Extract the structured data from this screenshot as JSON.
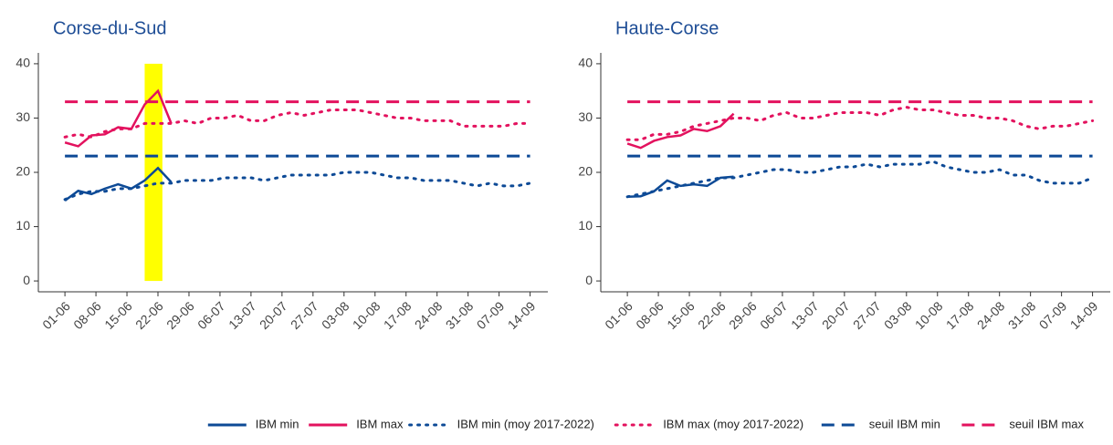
{
  "chart_data": [
    {
      "type": "line",
      "title": "Corse-du-Sud",
      "x": [
        "01-06",
        "04-06",
        "07-06",
        "10-06",
        "13-06",
        "16-06",
        "19-06",
        "22-06",
        "25-06",
        "28-06",
        "01-07",
        "04-07",
        "07-07",
        "10-07",
        "13-07",
        "16-07",
        "19-07",
        "22-07",
        "25-07",
        "28-07",
        "31-07",
        "03-08",
        "06-08",
        "09-08",
        "12-08",
        "15-08",
        "18-08",
        "21-08",
        "24-08",
        "27-08",
        "30-08",
        "02-09",
        "05-09",
        "08-09",
        "11-09",
        "14-09"
      ],
      "xlim": [
        "26-05",
        "18-09"
      ],
      "xticks": [
        "01-06",
        "08-06",
        "15-06",
        "22-06",
        "29-06",
        "06-07",
        "13-07",
        "20-07",
        "27-07",
        "03-08",
        "10-08",
        "17-08",
        "24-08",
        "31-08",
        "07-09",
        "14-09"
      ],
      "ylim": [
        -2,
        42
      ],
      "yticks": [
        0,
        10,
        20,
        30,
        40
      ],
      "highlight": {
        "x": [
          "19-06",
          "23-06"
        ],
        "y": [
          0,
          40
        ],
        "color": "#ffff00"
      },
      "series": [
        {
          "name": "IBM min",
          "color": "#0d4a96",
          "dash": "solid",
          "values": [
            14.8,
            16.6,
            16,
            17,
            17.8,
            17,
            18.5,
            20.8,
            18.2,
            null,
            null,
            null,
            null,
            null,
            null,
            null,
            null,
            null,
            null,
            null,
            null,
            null,
            null,
            null,
            null,
            null,
            null,
            null,
            null,
            null,
            null,
            null,
            null,
            null,
            null,
            null
          ]
        },
        {
          "name": "IBM max",
          "color": "#e3125e",
          "dash": "solid",
          "values": [
            25.5,
            24.8,
            26.8,
            27,
            28.3,
            28,
            32.5,
            35,
            29,
            null,
            null,
            null,
            null,
            null,
            null,
            null,
            null,
            null,
            null,
            null,
            null,
            null,
            null,
            null,
            null,
            null,
            null,
            null,
            null,
            null,
            null,
            null,
            null,
            null,
            null,
            null
          ]
        },
        {
          "name": "IBM min (moy 2017-2022)",
          "color": "#0d4a96",
          "dash": "dotted",
          "values": [
            15,
            16,
            16.5,
            16.5,
            17,
            17,
            17.5,
            18,
            18,
            18.5,
            18.5,
            18.5,
            19,
            19,
            19,
            18.5,
            19,
            19.5,
            19.5,
            19.5,
            19.5,
            20,
            20,
            20,
            19.5,
            19,
            19,
            18.5,
            18.5,
            18.5,
            18,
            17.5,
            18,
            17.5,
            17.5,
            18
          ]
        },
        {
          "name": "IBM max (moy 2017-2022)",
          "color": "#e3125e",
          "dash": "dotted",
          "values": [
            26.5,
            27,
            26.5,
            27.5,
            28,
            28,
            29,
            29,
            29,
            29.5,
            29,
            30,
            30,
            30.5,
            29.5,
            29.5,
            30.5,
            31,
            30.5,
            31,
            31.5,
            31.5,
            31.5,
            31,
            30.5,
            30,
            30,
            29.5,
            29.5,
            29.5,
            28.5,
            28.5,
            28.5,
            28.5,
            29,
            29
          ]
        },
        {
          "name": "seuil IBM min",
          "color": "#0d4a96",
          "dash": "dashed",
          "level": 23
        },
        {
          "name": "seuil IBM max",
          "color": "#e3125e",
          "dash": "dashed",
          "level": 33
        }
      ]
    },
    {
      "type": "line",
      "title": "Haute-Corse",
      "x": [
        "01-06",
        "04-06",
        "07-06",
        "10-06",
        "13-06",
        "16-06",
        "19-06",
        "22-06",
        "25-06",
        "28-06",
        "01-07",
        "04-07",
        "07-07",
        "10-07",
        "13-07",
        "16-07",
        "19-07",
        "22-07",
        "25-07",
        "28-07",
        "31-07",
        "03-08",
        "06-08",
        "09-08",
        "12-08",
        "15-08",
        "18-08",
        "21-08",
        "24-08",
        "27-08",
        "30-08",
        "02-09",
        "05-09",
        "08-09",
        "11-09",
        "14-09"
      ],
      "xlim": [
        "26-05",
        "18-09"
      ],
      "xticks": [
        "01-06",
        "08-06",
        "15-06",
        "22-06",
        "29-06",
        "06-07",
        "13-07",
        "20-07",
        "27-07",
        "03-08",
        "10-08",
        "17-08",
        "24-08",
        "31-08",
        "07-09",
        "14-09"
      ],
      "ylim": [
        -2,
        42
      ],
      "yticks": [
        0,
        10,
        20,
        30,
        40
      ],
      "series": [
        {
          "name": "IBM min",
          "color": "#0d4a96",
          "dash": "solid",
          "values": [
            15.5,
            15.6,
            16.5,
            18.5,
            17.5,
            17.8,
            17.5,
            19,
            19.2,
            null,
            null,
            null,
            null,
            null,
            null,
            null,
            null,
            null,
            null,
            null,
            null,
            null,
            null,
            null,
            null,
            null,
            null,
            null,
            null,
            null,
            null,
            null,
            null,
            null,
            null,
            null
          ]
        },
        {
          "name": "IBM max",
          "color": "#e3125e",
          "dash": "solid",
          "values": [
            25.3,
            24.5,
            25.8,
            26.5,
            26.8,
            28,
            27.6,
            28.5,
            30.8,
            null,
            null,
            null,
            null,
            null,
            null,
            null,
            null,
            null,
            null,
            null,
            null,
            null,
            null,
            null,
            null,
            null,
            null,
            null,
            null,
            null,
            null,
            null,
            null,
            null,
            null,
            null
          ]
        },
        {
          "name": "IBM min (moy 2017-2022)",
          "color": "#0d4a96",
          "dash": "dotted",
          "values": [
            15.5,
            16,
            16.5,
            17,
            17.5,
            18,
            18.5,
            19,
            19,
            19.5,
            20,
            20.5,
            20.5,
            20,
            20,
            20.5,
            21,
            21,
            21.5,
            21,
            21.5,
            21.5,
            21.5,
            22,
            21,
            20.5,
            20,
            20,
            20.5,
            19.5,
            19.5,
            18.5,
            18,
            18,
            18,
            19
          ]
        },
        {
          "name": "IBM max (moy 2017-2022)",
          "color": "#e3125e",
          "dash": "dotted",
          "values": [
            26,
            26,
            27,
            27,
            27.5,
            28.5,
            29,
            29.5,
            30,
            30,
            29.5,
            30.5,
            31,
            30,
            30,
            30.5,
            31,
            31,
            31,
            30.5,
            31.5,
            32,
            31.5,
            31.5,
            31,
            30.5,
            30.5,
            30,
            30,
            29.5,
            28.5,
            28,
            28.5,
            28.5,
            29,
            29.5
          ]
        },
        {
          "name": "seuil IBM min",
          "color": "#0d4a96",
          "dash": "dashed",
          "level": 23
        },
        {
          "name": "seuil IBM max",
          "color": "#e3125e",
          "dash": "dashed",
          "level": 33
        }
      ]
    }
  ]
}
